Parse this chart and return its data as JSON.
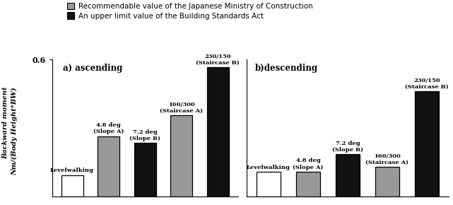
{
  "ascending": {
    "values": [
      0.095,
      0.265,
      0.235,
      0.355,
      0.565
    ],
    "colors": [
      "white",
      "#999999",
      "#111111",
      "#999999",
      "#111111"
    ],
    "edgecolors": [
      "black",
      "black",
      "black",
      "black",
      "black"
    ],
    "bar_labels": [
      "Levelwalking",
      "4.8 deg\n(Slope A)",
      "7.2 deg\n(Slope B)",
      "160/300\n(Staircase A)",
      "230/150\n(Staircase B)"
    ]
  },
  "descending": {
    "values": [
      0.11,
      0.11,
      0.185,
      0.13,
      0.46
    ],
    "colors": [
      "white",
      "#999999",
      "#111111",
      "#999999",
      "#111111"
    ],
    "edgecolors": [
      "black",
      "black",
      "black",
      "black",
      "black"
    ],
    "bar_labels": [
      "Levelwalking",
      "4.8 deg\n(Slope A)",
      "7.2 deg\n(Slope B)",
      "160/300\n(Staircase A)",
      "230/150\n(Staircase B)"
    ]
  },
  "ylim": [
    0,
    0.6
  ],
  "ylabel_line1": "Backward moment",
  "ylabel_line2": "Nm/(Body Height*BW)",
  "legend_gray_label": "Recommendable value of the Japanese Ministry of Construction",
  "legend_black_label": "An upper limit value of the Building Standards Act",
  "title_a": "a) ascending",
  "title_b": "b)descending",
  "bar_width": 0.6,
  "title_fontsize": 8.5,
  "label_fontsize": 6.0,
  "ylabel_fontsize": 7.0,
  "legend_fontsize": 7.5,
  "ytick_fontsize": 8
}
